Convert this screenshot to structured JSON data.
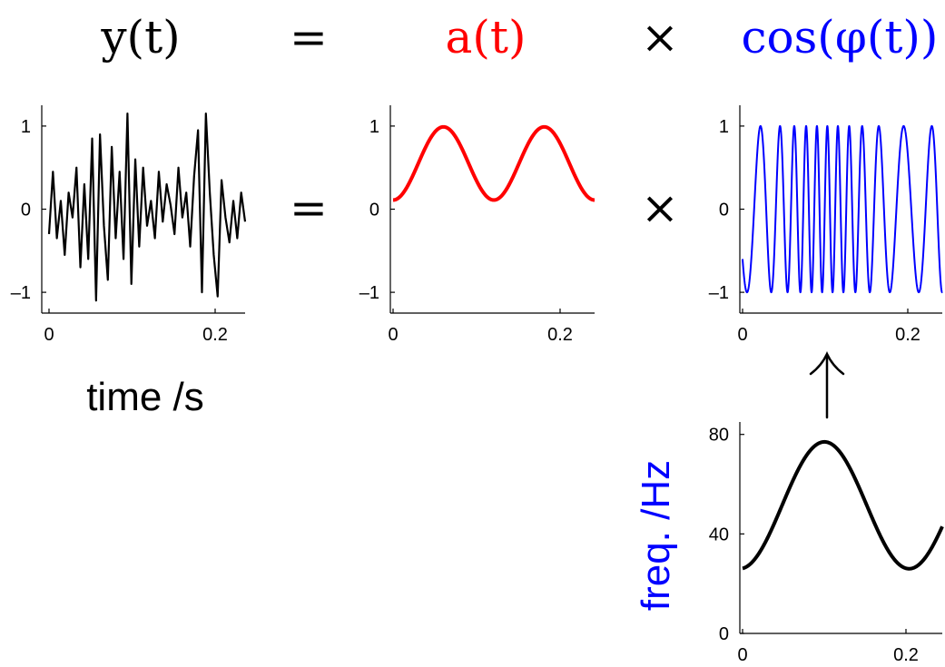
{
  "equation": {
    "lhs": "y(t)",
    "equals": "=",
    "amplitude": "a(t)",
    "times": "×",
    "phase": "cos(φ(t))"
  },
  "colors": {
    "signal": "#000000",
    "amplitude": "#ff0000",
    "carrier": "#0000ff",
    "frequency": "#000000",
    "freq_label": "#0000ff"
  },
  "xlabel": "time /s",
  "ylabel_freq": "freq. /Hz",
  "arrow_icon": "up-arrow-icon",
  "chart_data": [
    {
      "id": "signal",
      "type": "line",
      "title": "",
      "xlabel": "time /s",
      "ylabel": "",
      "xlim": [
        0,
        0.25
      ],
      "ylim": [
        -1.25,
        1.25
      ],
      "xticks": [
        0,
        0.2
      ],
      "xtick_labels": [
        "0",
        "0.2"
      ],
      "yticks": [
        -1,
        0,
        1
      ],
      "ytick_labels": [
        "–1",
        "0",
        "1"
      ],
      "series": [
        {
          "color": "#000000",
          "x": [
            0,
            0.005,
            0.01,
            0.015,
            0.02,
            0.025,
            0.03,
            0.035,
            0.04,
            0.045,
            0.05,
            0.055,
            0.06,
            0.065,
            0.07,
            0.075,
            0.08,
            0.085,
            0.09,
            0.095,
            0.1,
            0.105,
            0.11,
            0.115,
            0.12,
            0.125,
            0.13,
            0.135,
            0.14,
            0.145,
            0.15,
            0.155,
            0.16,
            0.165,
            0.17,
            0.175,
            0.18,
            0.185,
            0.19,
            0.195,
            0.2,
            0.205,
            0.21,
            0.215,
            0.22,
            0.225,
            0.23,
            0.235,
            0.24,
            0.245,
            0.25
          ],
          "y": [
            -0.3,
            0.45,
            -0.35,
            0.1,
            -0.55,
            0.2,
            -0.1,
            0.5,
            -0.7,
            0.3,
            -0.6,
            0.85,
            -1.1,
            0.9,
            -0.2,
            -0.85,
            0.75,
            -0.35,
            0.45,
            -0.6,
            1.15,
            -0.9,
            0.6,
            -0.45,
            0.5,
            -0.2,
            0.1,
            -0.35,
            0.45,
            -0.15,
            0.3,
            0.05,
            -0.3,
            0.5,
            -0.1,
            0.2,
            -0.45,
            0.4,
            0.95,
            -1.0,
            1.15,
            0.2,
            -0.55,
            -1.05,
            0.35,
            -0.1,
            -0.4,
            0.1,
            -0.35,
            0.2,
            -0.15
          ]
        }
      ]
    },
    {
      "id": "amplitude",
      "type": "line",
      "title": "",
      "xlabel": "",
      "ylabel": "",
      "xlim": [
        0,
        0.25
      ],
      "ylim": [
        -1.25,
        1.25
      ],
      "xticks": [
        0,
        0.2
      ],
      "xtick_labels": [
        "0",
        "0.2"
      ],
      "yticks": [
        -1,
        0,
        1
      ],
      "ytick_labels": [
        "–1",
        "0",
        "1"
      ],
      "series": [
        {
          "color": "#ff0000",
          "function": "0.55 - 0.44*cos(2*pi*8*t)",
          "x": [
            0,
            0.0625,
            0.125,
            0.1875,
            0.25
          ],
          "y": [
            0.11,
            0.99,
            0.11,
            0.99,
            0.11
          ]
        }
      ]
    },
    {
      "id": "carrier",
      "type": "line",
      "title": "",
      "xlabel": "",
      "ylabel": "",
      "xlim": [
        0,
        0.25
      ],
      "ylim": [
        -1.25,
        1.25
      ],
      "xticks": [
        0,
        0.2
      ],
      "xtick_labels": [
        "0",
        "0.2"
      ],
      "yticks": [
        -1,
        0,
        1
      ],
      "ytick_labels": [
        "–1",
        "0",
        "1"
      ],
      "series": [
        {
          "color": "#0000ff",
          "function": "cos(phi(t)), phi = integral of instantaneous frequency",
          "x": [
            0,
            0.25
          ],
          "y": [
            -0.6,
            -0.95
          ]
        }
      ]
    },
    {
      "id": "frequency",
      "type": "line",
      "title": "",
      "xlabel": "",
      "ylabel": "freq. /Hz",
      "xlim": [
        0,
        0.25
      ],
      "ylim": [
        0,
        85
      ],
      "xticks": [
        0,
        0.2
      ],
      "xtick_labels": [
        "0",
        "0.2"
      ],
      "yticks": [
        0,
        40,
        80
      ],
      "ytick_labels": [
        "0",
        "40",
        "80"
      ],
      "series": [
        {
          "color": "#000000",
          "function": "51.5 - 25.5*cos(2*pi*(t+0.0035)/0.212)",
          "x": [
            0,
            0.05,
            0.1035,
            0.15,
            0.2095,
            0.25
          ],
          "y": [
            26,
            51,
            77,
            53,
            26,
            44
          ]
        }
      ]
    }
  ]
}
